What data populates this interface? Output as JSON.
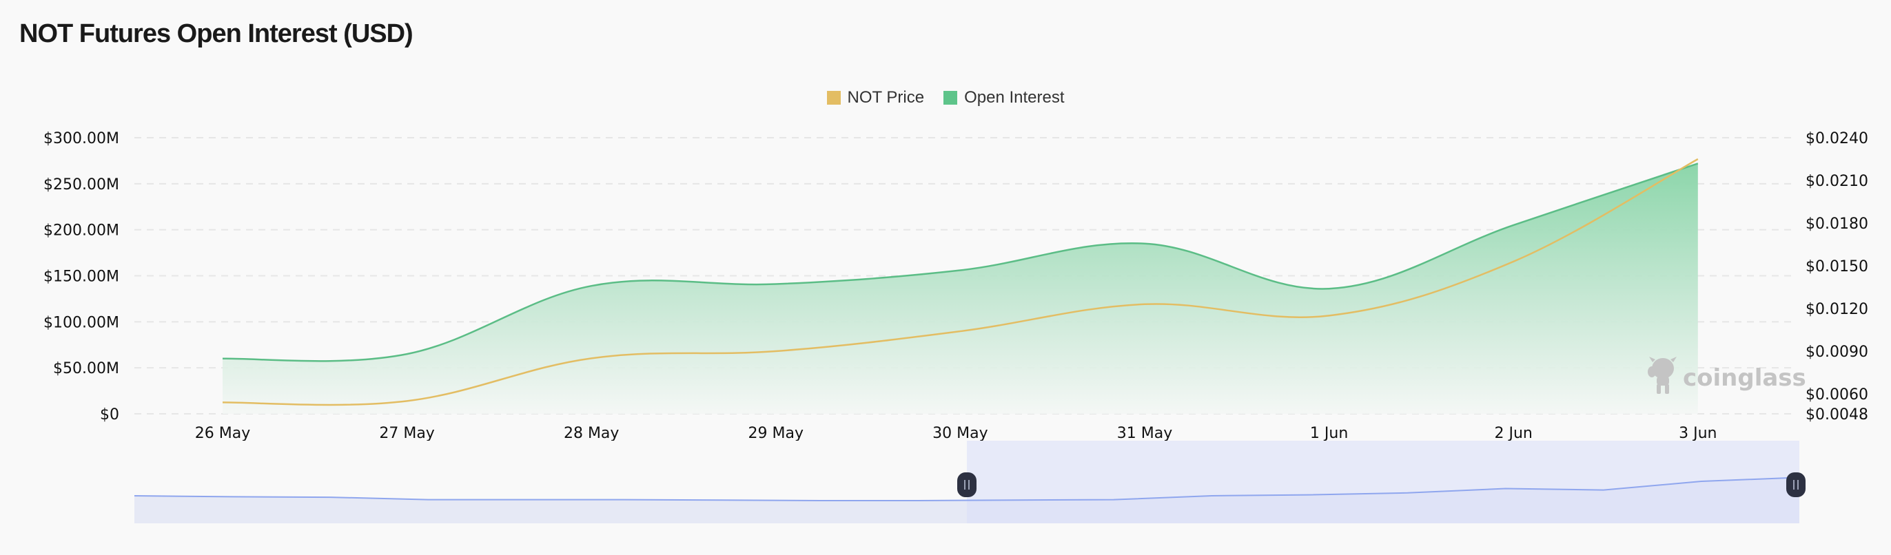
{
  "header": {
    "title": "NOT Futures Open Interest (USD)"
  },
  "legend": {
    "items": [
      {
        "label": "NOT Price",
        "color": "#e3bd63"
      },
      {
        "label": "Open Interest",
        "color": "#5ec48a"
      }
    ]
  },
  "watermark": "coinglass",
  "colors": {
    "price_line": "#e3bd63",
    "oi_line": "#5bbd86",
    "oi_fill_top": "#8dd6ab",
    "oi_fill_bottom": "#f3f7f5",
    "grid": "#e6e6e6",
    "zoom_bg": "#e8eaf5",
    "zoom_selected": "#dadff8",
    "zoom_line": "#8fa6ee",
    "handle": "#2d3142"
  },
  "chart_data": {
    "type": "line",
    "title": "NOT Futures Open Interest (USD)",
    "xlabel": "",
    "categories": [
      "26 May",
      "27 May",
      "28 May",
      "29 May",
      "30 May",
      "31 May",
      "1 Jun",
      "2 Jun",
      "3 Jun"
    ],
    "series": [
      {
        "name": "Open Interest",
        "type": "area",
        "axis": "left",
        "unit": "USD (millions)",
        "values": [
          60,
          65,
          139,
          141,
          156,
          185,
          136,
          205,
          272
        ]
      },
      {
        "name": "NOT Price",
        "type": "line",
        "axis": "right",
        "unit": "USD",
        "values": [
          0.0054,
          0.0055,
          0.0085,
          0.009,
          0.0104,
          0.0123,
          0.0115,
          0.0153,
          0.0225
        ]
      }
    ],
    "y_left": {
      "ticks": [
        "$0",
        "$50.00M",
        "$100.00M",
        "$150.00M",
        "$200.00M",
        "$250.00M",
        "$300.00M"
      ],
      "range": [
        0,
        300
      ]
    },
    "y_right": {
      "ticks": [
        "$0.0048",
        "$0.0060",
        "$0.0090",
        "$0.0120",
        "$0.0150",
        "$0.0180",
        "$0.0210",
        "$0.0240"
      ],
      "range": [
        0.0048,
        0.024
      ]
    },
    "grid": true,
    "grid_style": "dashed horizontal",
    "legend_position": "top-center",
    "data_zoom": {
      "start_label": "30 May",
      "end_label": "3 Jun",
      "selected_range_percent": [
        50,
        100
      ]
    }
  }
}
